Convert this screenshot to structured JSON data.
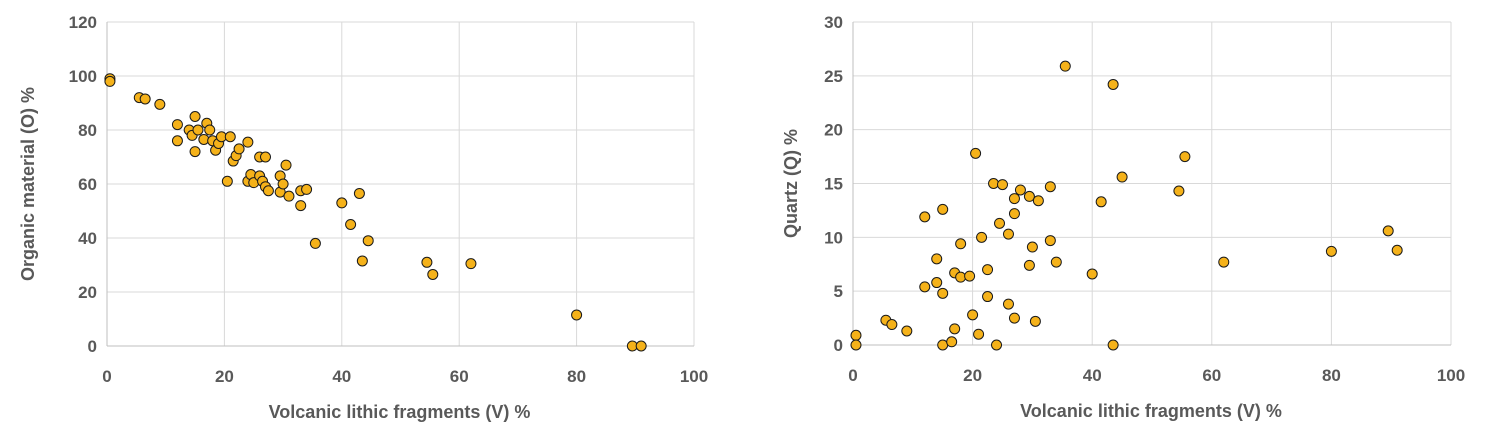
{
  "chart_data": [
    {
      "type": "scatter",
      "xlabel": "Volcanic lithic fragments (V) %",
      "ylabel": "Organic material (O) %",
      "xlim": [
        0,
        100
      ],
      "ylim": [
        0,
        120
      ],
      "xticks": [
        0,
        20,
        40,
        60,
        80,
        100
      ],
      "xtick_labels": [
        "0",
        "20",
        "40",
        "60",
        "80",
        "100"
      ],
      "yticks": [
        0,
        20,
        40,
        60,
        80,
        100,
        120
      ],
      "ytick_labels": [
        "0",
        "20",
        "40",
        "60",
        "80",
        "100",
        "120"
      ],
      "grid": true,
      "marker_color": "#f5b21a",
      "points": [
        [
          0.5,
          99
        ],
        [
          0.5,
          98
        ],
        [
          5.5,
          92
        ],
        [
          6.5,
          91.5
        ],
        [
          9,
          89.5
        ],
        [
          12,
          82
        ],
        [
          12,
          76
        ],
        [
          14,
          80
        ],
        [
          14.5,
          78
        ],
        [
          15,
          85
        ],
        [
          15,
          72
        ],
        [
          15.5,
          80
        ],
        [
          16.5,
          76.5
        ],
        [
          17,
          82.5
        ],
        [
          17.5,
          80
        ],
        [
          18,
          76
        ],
        [
          18.5,
          72.5
        ],
        [
          19,
          75
        ],
        [
          19.5,
          77.5
        ],
        [
          20.5,
          61
        ],
        [
          21,
          77.5
        ],
        [
          21.5,
          68.5
        ],
        [
          22,
          70.5
        ],
        [
          22.5,
          73
        ],
        [
          24,
          75.5
        ],
        [
          24,
          61
        ],
        [
          24.5,
          63.5
        ],
        [
          25,
          60.5
        ],
        [
          26,
          70
        ],
        [
          26,
          63
        ],
        [
          26.5,
          61
        ],
        [
          27,
          70
        ],
        [
          27,
          59
        ],
        [
          27.5,
          57.5
        ],
        [
          29.5,
          63
        ],
        [
          29.5,
          57
        ],
        [
          30,
          60
        ],
        [
          30.5,
          67
        ],
        [
          31,
          55.5
        ],
        [
          33,
          57.5
        ],
        [
          33,
          52
        ],
        [
          34,
          58
        ],
        [
          35.5,
          38
        ],
        [
          40,
          53
        ],
        [
          41.5,
          45
        ],
        [
          43,
          56.5
        ],
        [
          43.5,
          31.5
        ],
        [
          44.5,
          39
        ],
        [
          54.5,
          31
        ],
        [
          55.5,
          26.5
        ],
        [
          62,
          30.5
        ],
        [
          80,
          11.5
        ],
        [
          89.5,
          0
        ],
        [
          91,
          0
        ]
      ]
    },
    {
      "type": "scatter",
      "xlabel": "Volcanic lithic fragments (V) %",
      "ylabel": "Quartz (Q) %",
      "xlim": [
        0,
        100
      ],
      "ylim": [
        0,
        30
      ],
      "xticks": [
        0,
        20,
        40,
        60,
        80,
        100
      ],
      "xtick_labels": [
        "0",
        "20",
        "40",
        "60",
        "80",
        "100"
      ],
      "yticks": [
        0,
        5,
        10,
        15,
        20,
        25,
        30
      ],
      "ytick_labels": [
        "0",
        "5",
        "10",
        "15",
        "20",
        "25",
        "30"
      ],
      "grid": true,
      "marker_color": "#f5b21a",
      "points": [
        [
          0.5,
          0.9
        ],
        [
          0.5,
          0
        ],
        [
          5.5,
          2.3
        ],
        [
          6.5,
          1.9
        ],
        [
          9,
          1.3
        ],
        [
          12,
          11.9
        ],
        [
          12,
          5.4
        ],
        [
          14,
          8.0
        ],
        [
          14,
          5.8
        ],
        [
          15,
          12.6
        ],
        [
          15,
          4.8
        ],
        [
          15,
          0
        ],
        [
          16.5,
          0.3
        ],
        [
          17,
          6.7
        ],
        [
          17,
          1.5
        ],
        [
          18,
          6.3
        ],
        [
          18,
          9.4
        ],
        [
          19.5,
          6.4
        ],
        [
          20,
          2.8
        ],
        [
          20.5,
          17.8
        ],
        [
          21,
          1.0
        ],
        [
          21.5,
          10.0
        ],
        [
          22.5,
          7.0
        ],
        [
          22.5,
          4.5
        ],
        [
          23.5,
          15.0
        ],
        [
          24,
          0
        ],
        [
          24.5,
          11.3
        ],
        [
          25,
          14.9
        ],
        [
          26,
          3.8
        ],
        [
          26,
          10.3
        ],
        [
          27,
          12.2
        ],
        [
          27,
          13.6
        ],
        [
          27,
          2.5
        ],
        [
          28,
          14.4
        ],
        [
          29.5,
          13.8
        ],
        [
          29.5,
          7.4
        ],
        [
          30,
          9.1
        ],
        [
          30.5,
          2.2
        ],
        [
          31,
          13.4
        ],
        [
          33,
          9.7
        ],
        [
          33,
          14.7
        ],
        [
          34,
          7.7
        ],
        [
          35.5,
          25.9
        ],
        [
          40,
          6.6
        ],
        [
          41.5,
          13.3
        ],
        [
          43.5,
          24.2
        ],
        [
          43.5,
          0
        ],
        [
          45,
          15.6
        ],
        [
          54.5,
          14.3
        ],
        [
          55.5,
          17.5
        ],
        [
          62,
          7.7
        ],
        [
          80,
          8.7
        ],
        [
          89.5,
          10.6
        ],
        [
          91,
          8.8
        ]
      ]
    }
  ]
}
